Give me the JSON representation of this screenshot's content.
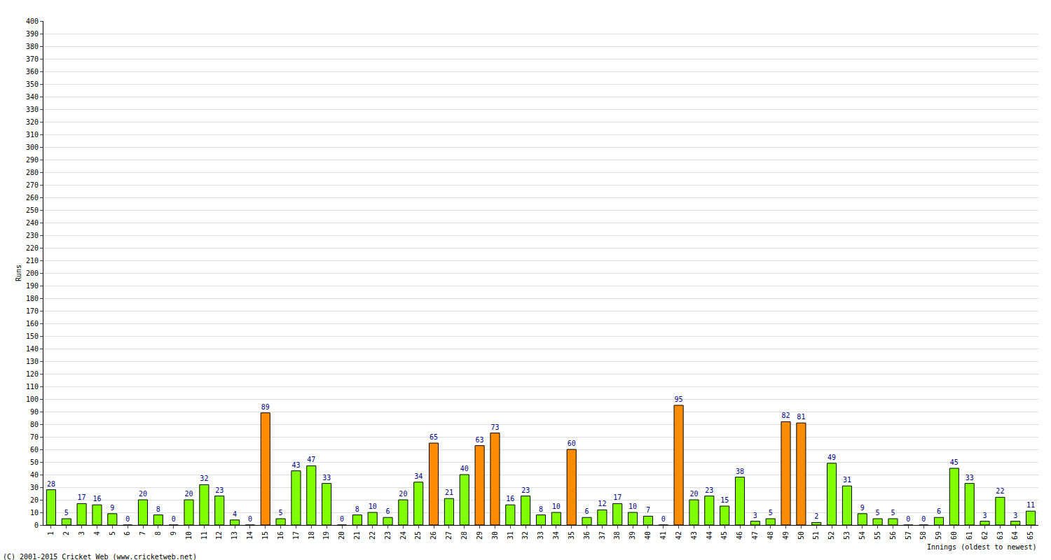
{
  "chart_data": {
    "type": "bar",
    "y_label": "Runs",
    "x_label": "Innings (oldest to newest)",
    "annotations": [
      "(C) 2001-2015 Cricket Web (www.cricketweb.net)"
    ],
    "categories": [
      "1",
      "2",
      "3",
      "4",
      "5",
      "6",
      "7",
      "8",
      "9",
      "10",
      "11",
      "12",
      "13",
      "14",
      "15",
      "16",
      "17",
      "18",
      "19",
      "20",
      "21",
      "22",
      "23",
      "24",
      "25",
      "26",
      "27",
      "28",
      "29",
      "30",
      "31",
      "32",
      "33",
      "34",
      "35",
      "36",
      "37",
      "38",
      "39",
      "40",
      "41",
      "42",
      "43",
      "44",
      "45",
      "46",
      "47",
      "48",
      "49",
      "50",
      "51",
      "52",
      "53",
      "54",
      "55",
      "56",
      "57",
      "58",
      "59",
      "60",
      "61",
      "62",
      "63",
      "64",
      "65"
    ],
    "values": [
      28,
      5,
      17,
      16,
      9,
      0,
      20,
      8,
      0,
      20,
      32,
      23,
      4,
      0,
      89,
      5,
      43,
      47,
      33,
      0,
      8,
      10,
      6,
      20,
      34,
      65,
      21,
      40,
      63,
      73,
      16,
      23,
      8,
      10,
      60,
      6,
      12,
      17,
      10,
      7,
      0,
      95,
      20,
      23,
      15,
      38,
      3,
      5,
      82,
      81,
      2,
      49,
      31,
      9,
      5,
      5,
      0,
      0,
      6,
      45,
      33,
      3,
      22,
      3,
      11
    ],
    "colors": [
      "#80ff00",
      "#80ff00",
      "#80ff00",
      "#80ff00",
      "#80ff00",
      "#80ff00",
      "#80ff00",
      "#80ff00",
      "#80ff00",
      "#80ff00",
      "#80ff00",
      "#80ff00",
      "#80ff00",
      "#80ff00",
      "#ff8c00",
      "#80ff00",
      "#80ff00",
      "#80ff00",
      "#80ff00",
      "#80ff00",
      "#80ff00",
      "#80ff00",
      "#80ff00",
      "#80ff00",
      "#80ff00",
      "#ff8c00",
      "#80ff00",
      "#80ff00",
      "#ff8c00",
      "#ff8c00",
      "#80ff00",
      "#80ff00",
      "#80ff00",
      "#80ff00",
      "#ff8c00",
      "#80ff00",
      "#80ff00",
      "#80ff00",
      "#80ff00",
      "#80ff00",
      "#80ff00",
      "#ff8c00",
      "#80ff00",
      "#80ff00",
      "#80ff00",
      "#80ff00",
      "#80ff00",
      "#80ff00",
      "#ff8c00",
      "#ff8c00",
      "#80ff00",
      "#80ff00",
      "#80ff00",
      "#80ff00",
      "#80ff00",
      "#80ff00",
      "#80ff00",
      "#80ff00",
      "#80ff00",
      "#80ff00",
      "#80ff00",
      "#80ff00",
      "#80ff00",
      "#80ff00",
      "#80ff00"
    ],
    "ylim": [
      0,
      400
    ],
    "yticks": [
      0,
      10,
      20,
      30,
      40,
      50,
      60,
      70,
      80,
      90,
      100,
      110,
      120,
      130,
      140,
      150,
      160,
      170,
      180,
      190,
      200,
      210,
      220,
      230,
      240,
      250,
      260,
      270,
      280,
      290,
      300,
      310,
      320,
      330,
      340,
      350,
      360,
      370,
      380,
      390,
      400
    ],
    "grid": true,
    "data_labels": true
  }
}
